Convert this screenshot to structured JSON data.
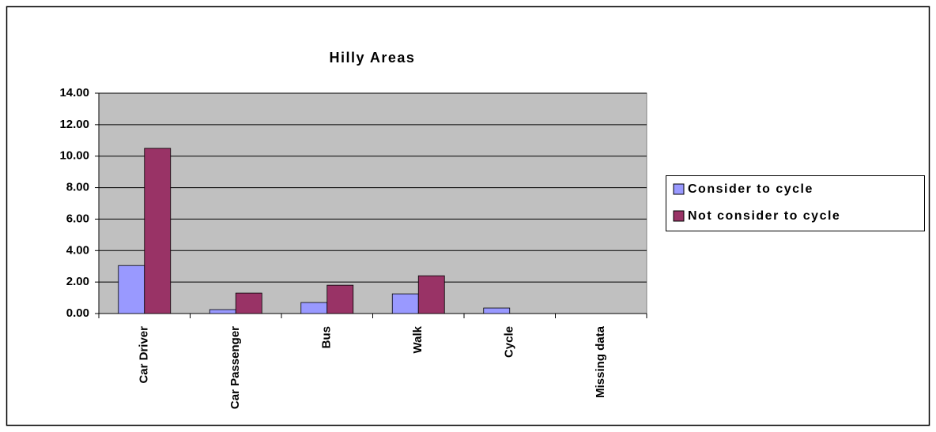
{
  "chart_data": {
    "type": "bar",
    "title": "Hilly Areas",
    "categories": [
      "Car Driver",
      "Car Passenger",
      "Bus",
      "Walk",
      "Cycle",
      "Missing data"
    ],
    "series": [
      {
        "name": "Consider to cycle",
        "color": "#9999ff",
        "values": [
          3.05,
          0.25,
          0.7,
          1.25,
          0.35,
          0
        ]
      },
      {
        "name": "Not consider to cycle",
        "color": "#993366",
        "values": [
          10.5,
          1.3,
          1.8,
          2.4,
          0,
          0
        ]
      }
    ],
    "ylim": [
      0,
      14
    ],
    "yticks": [
      {
        "value": 0,
        "label": "0.00"
      },
      {
        "value": 2,
        "label": "2.00"
      },
      {
        "value": 4,
        "label": "4.00"
      },
      {
        "value": 6,
        "label": "6.00"
      },
      {
        "value": 8,
        "label": "8.00"
      },
      {
        "value": 10,
        "label": "10.00"
      },
      {
        "value": 12,
        "label": "12.00"
      },
      {
        "value": 14,
        "label": "14.00"
      }
    ],
    "grid": true,
    "legend": "right"
  }
}
